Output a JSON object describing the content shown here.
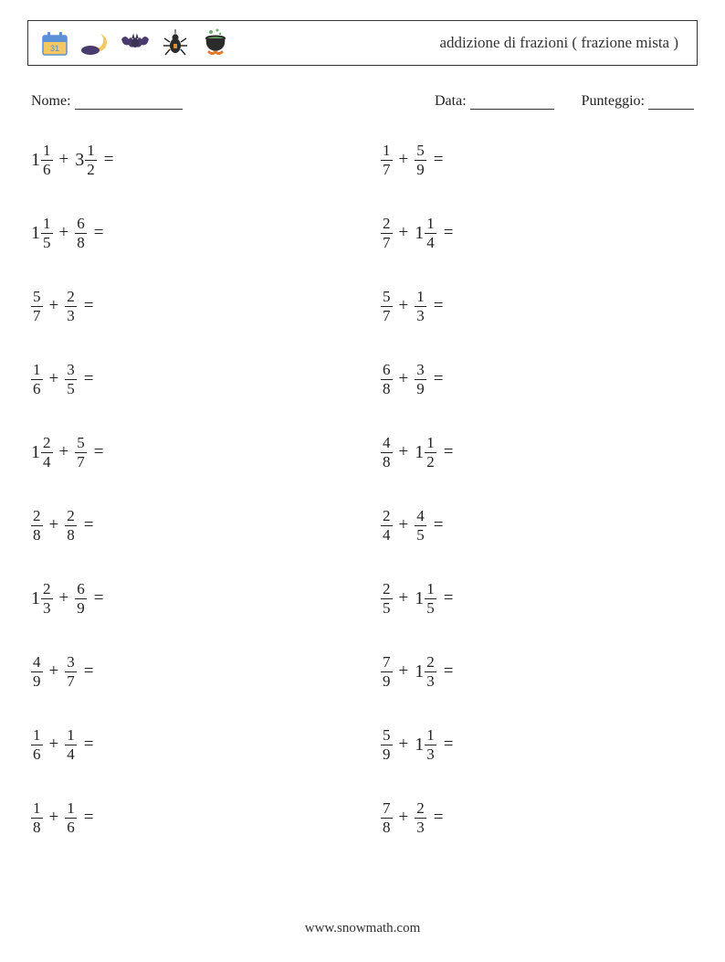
{
  "header": {
    "title": "addizione di frazioni ( frazione mista )",
    "icons": [
      "calendar-icon",
      "moon-icon",
      "bat-icon",
      "spider-icon",
      "cauldron-icon"
    ]
  },
  "info": {
    "name_label": "Nome:",
    "date_label": "Data:",
    "score_label": "Punteggio:",
    "name_blank_width": 118,
    "date_blank_width": 92,
    "score_blank_width": 50
  },
  "icon_colors": {
    "calendar_bg": "#f4c760",
    "calendar_top": "#5b8fd6",
    "moon": "#f4c760",
    "moon_cloud": "#4a3b6e",
    "bat_body": "#3a3550",
    "bat_wing": "#4a3b6e",
    "spider_body": "#2b2b2b",
    "spider_accent": "#d98f3a",
    "cauldron": "#2b2b2b",
    "cauldron_fire": "#e07b2e",
    "cauldron_bubble": "#6bb36b"
  },
  "problems_left": [
    {
      "a": {
        "w": "1",
        "n": "1",
        "d": "6"
      },
      "b": {
        "w": "3",
        "n": "1",
        "d": "2"
      }
    },
    {
      "a": {
        "w": "1",
        "n": "1",
        "d": "5"
      },
      "b": {
        "w": "",
        "n": "6",
        "d": "8"
      }
    },
    {
      "a": {
        "w": "",
        "n": "5",
        "d": "7"
      },
      "b": {
        "w": "",
        "n": "2",
        "d": "3"
      }
    },
    {
      "a": {
        "w": "",
        "n": "1",
        "d": "6"
      },
      "b": {
        "w": "",
        "n": "3",
        "d": "5"
      }
    },
    {
      "a": {
        "w": "1",
        "n": "2",
        "d": "4"
      },
      "b": {
        "w": "",
        "n": "5",
        "d": "7"
      }
    },
    {
      "a": {
        "w": "",
        "n": "2",
        "d": "8"
      },
      "b": {
        "w": "",
        "n": "2",
        "d": "8"
      }
    },
    {
      "a": {
        "w": "1",
        "n": "2",
        "d": "3"
      },
      "b": {
        "w": "",
        "n": "6",
        "d": "9"
      }
    },
    {
      "a": {
        "w": "",
        "n": "4",
        "d": "9"
      },
      "b": {
        "w": "",
        "n": "3",
        "d": "7"
      }
    },
    {
      "a": {
        "w": "",
        "n": "1",
        "d": "6"
      },
      "b": {
        "w": "",
        "n": "1",
        "d": "4"
      }
    },
    {
      "a": {
        "w": "",
        "n": "1",
        "d": "8"
      },
      "b": {
        "w": "",
        "n": "1",
        "d": "6"
      }
    }
  ],
  "problems_right": [
    {
      "a": {
        "w": "",
        "n": "1",
        "d": "7"
      },
      "b": {
        "w": "",
        "n": "5",
        "d": "9"
      }
    },
    {
      "a": {
        "w": "",
        "n": "2",
        "d": "7"
      },
      "b": {
        "w": "1",
        "n": "1",
        "d": "4"
      }
    },
    {
      "a": {
        "w": "",
        "n": "5",
        "d": "7"
      },
      "b": {
        "w": "",
        "n": "1",
        "d": "3"
      }
    },
    {
      "a": {
        "w": "",
        "n": "6",
        "d": "8"
      },
      "b": {
        "w": "",
        "n": "3",
        "d": "9"
      }
    },
    {
      "a": {
        "w": "",
        "n": "4",
        "d": "8"
      },
      "b": {
        "w": "1",
        "n": "1",
        "d": "2"
      }
    },
    {
      "a": {
        "w": "",
        "n": "2",
        "d": "4"
      },
      "b": {
        "w": "",
        "n": "4",
        "d": "5"
      }
    },
    {
      "a": {
        "w": "",
        "n": "2",
        "d": "5"
      },
      "b": {
        "w": "1",
        "n": "1",
        "d": "5"
      }
    },
    {
      "a": {
        "w": "",
        "n": "7",
        "d": "9"
      },
      "b": {
        "w": "1",
        "n": "2",
        "d": "3"
      }
    },
    {
      "a": {
        "w": "",
        "n": "5",
        "d": "9"
      },
      "b": {
        "w": "1",
        "n": "1",
        "d": "3"
      }
    },
    {
      "a": {
        "w": "",
        "n": "7",
        "d": "8"
      },
      "b": {
        "w": "",
        "n": "2",
        "d": "3"
      }
    }
  ],
  "symbols": {
    "plus": "+",
    "equals": "="
  },
  "footer": {
    "text": "www.snowmath.com"
  }
}
